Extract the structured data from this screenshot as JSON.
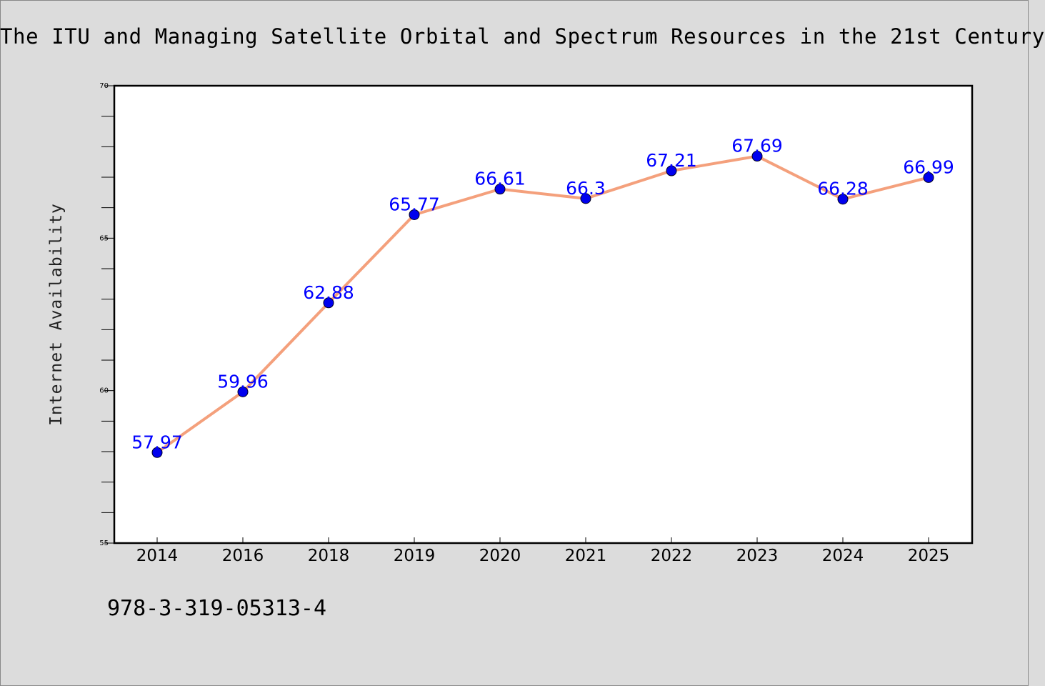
{
  "page": {
    "background": "#dcdcdc",
    "footer_code": "978-3-319-05313-4"
  },
  "chart_data": {
    "type": "line",
    "title": "The ITU and Managing Satellite Orbital and Spectrum Resources in the 21st Century",
    "xlabel": "",
    "ylabel": "Internet Availability",
    "categories": [
      "2014",
      "2016",
      "2018",
      "2019",
      "2020",
      "2021",
      "2022",
      "2023",
      "2024",
      "2025"
    ],
    "series": [
      {
        "values": [
          57.97,
          59.96,
          62.88,
          65.77,
          66.61,
          66.3,
          67.21,
          67.69,
          66.28,
          66.99
        ],
        "value_labels": [
          "57.97",
          "59.96",
          "62.88",
          "65.77",
          "66.61",
          "66.3",
          "67.21",
          "67.69",
          "66.28",
          "66.99"
        ],
        "line_color": "#f4a07c",
        "marker_color": "#0000ee",
        "label_color": "#0000ff"
      }
    ],
    "ylim": [
      55,
      70
    ],
    "yticks": [
      55,
      60,
      65,
      70
    ],
    "grid": false,
    "legend": "none",
    "plot_background": "#ffffff"
  }
}
